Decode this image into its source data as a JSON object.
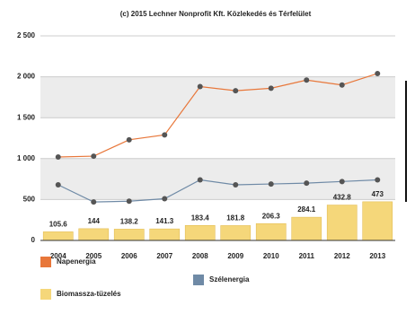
{
  "chart_data": {
    "type": "bar-line",
    "title": "(c) 2015 Lechner Nonprofit Kft. Közlekedés és Térfelület",
    "categories": [
      "2004",
      "2005",
      "2006",
      "2007",
      "2008",
      "2009",
      "2010",
      "2011",
      "2012",
      "2013"
    ],
    "ylim": [
      0,
      2500
    ],
    "yticks": [
      0,
      500,
      {
        "value": 1000,
        "label": "1 000"
      },
      {
        "value": 1500,
        "label": "1 500"
      },
      {
        "value": 2000,
        "label": "2 000"
      },
      {
        "value": 2500,
        "label": "2 500"
      }
    ],
    "grid": true,
    "series": [
      {
        "name": "Napenergia",
        "kind": "line",
        "color": "#e8773a",
        "values": [
          1020,
          1030,
          1230,
          1290,
          1880,
          1830,
          1860,
          1960,
          1900,
          2040
        ]
      },
      {
        "name": "Szélenergia",
        "kind": "line",
        "color": "#6f8aa6",
        "values": [
          680,
          470,
          480,
          510,
          740,
          680,
          690,
          700,
          720,
          740
        ]
      },
      {
        "name": "Biomassza-tüzelés",
        "kind": "bar",
        "color": "#f5d77a",
        "values": [
          105.6,
          144,
          138.2,
          141.3,
          183.4,
          181.8,
          206.3,
          284.1,
          432.8,
          473
        ]
      }
    ]
  }
}
